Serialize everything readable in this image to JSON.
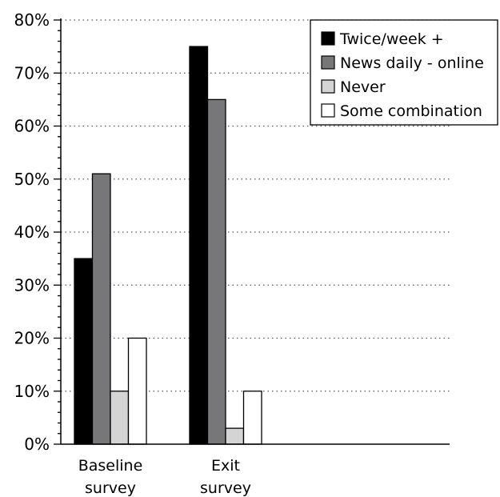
{
  "chart_data": {
    "type": "bar",
    "categories": [
      "Baseline survey",
      "Exit survey"
    ],
    "category_lines": [
      [
        "Baseline",
        "survey"
      ],
      [
        "Exit",
        "survey"
      ]
    ],
    "series": [
      {
        "name": "Twice/week +",
        "values": [
          35,
          75
        ],
        "color": "#000000"
      },
      {
        "name": "News daily - online",
        "values": [
          51,
          65
        ],
        "color": "#77777a"
      },
      {
        "name": "Never",
        "values": [
          10,
          3
        ],
        "color": "#d4d4d4"
      },
      {
        "name": "Some combination",
        "values": [
          20,
          10
        ],
        "color": "#ffffff"
      }
    ],
    "y_ticks": [
      0,
      10,
      20,
      30,
      40,
      50,
      60,
      70,
      80
    ],
    "y_tick_labels": [
      "0%",
      "10%",
      "20%",
      "30%",
      "40%",
      "50%",
      "60%",
      "70%",
      "80%"
    ],
    "ylim": [
      0,
      80
    ],
    "grid": true,
    "grid_style": "dotted",
    "legend_position": "top-right",
    "title": "",
    "xlabel": "",
    "ylabel": ""
  }
}
